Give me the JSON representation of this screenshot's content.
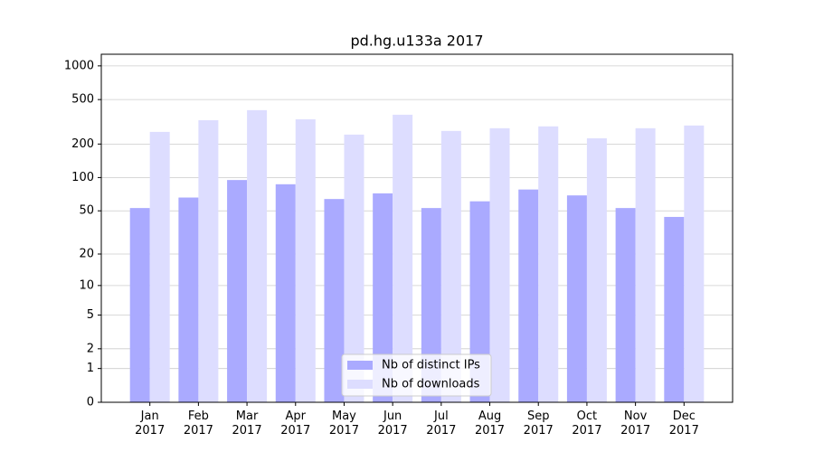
{
  "chart_data": {
    "type": "bar",
    "title": "pd.hg.u133a 2017",
    "categories": [
      "Jan\n2017",
      "Feb\n2017",
      "Mar\n2017",
      "Apr\n2017",
      "May\n2017",
      "Jun\n2017",
      "Jul\n2017",
      "Aug\n2017",
      "Sep\n2017",
      "Oct\n2017",
      "Nov\n2017",
      "Dec\n2017"
    ],
    "series": [
      {
        "name": "Nb of distinct IPs",
        "color": "#aaaaff",
        "values": [
          53,
          66,
          95,
          87,
          64,
          72,
          53,
          61,
          78,
          69,
          53,
          44
        ]
      },
      {
        "name": "Nb of downloads",
        "color": "#ddddff",
        "values": [
          257,
          327,
          402,
          333,
          243,
          366,
          262,
          277,
          288,
          225,
          277,
          293
        ]
      }
    ],
    "yscale": "log1p",
    "ylim": [
      0,
      1270
    ],
    "yticks": [
      0,
      1,
      2,
      5,
      10,
      20,
      50,
      100,
      200,
      500,
      1000
    ],
    "grid": true,
    "legend": "lower center"
  }
}
